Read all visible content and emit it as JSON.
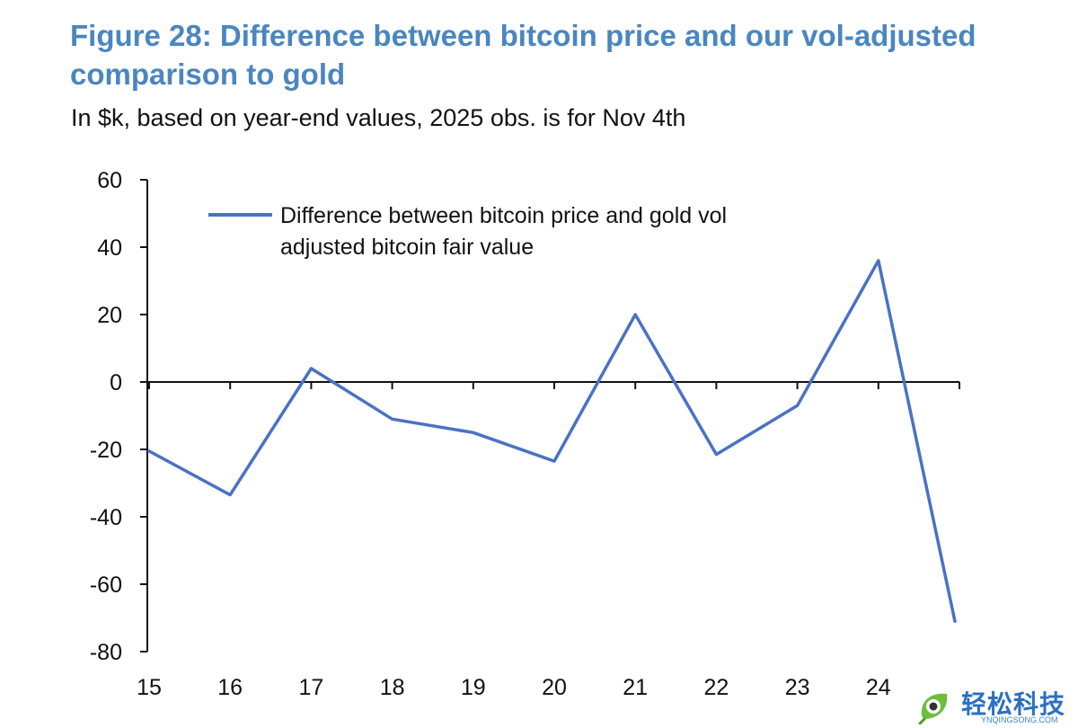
{
  "figure": {
    "title": "Figure 28: Difference between bitcoin price and our vol-adjusted comparison to gold",
    "subtitle": "In $k, based on year-end values, 2025 obs. is for Nov 4th"
  },
  "chart_data": {
    "type": "line",
    "title": "Figure 28: Difference between bitcoin price and our vol-adjusted comparison to gold",
    "subtitle": "In $k, based on year-end values, 2025 obs. is for Nov 4th",
    "xlabel": "",
    "ylabel": "",
    "x": [
      15,
      16,
      17,
      18,
      19,
      20,
      21,
      22,
      23,
      24,
      25
    ],
    "x_tick_labels": [
      "15",
      "16",
      "17",
      "18",
      "19",
      "20",
      "21",
      "22",
      "23",
      "24"
    ],
    "y_ticks": [
      60,
      40,
      20,
      0,
      -20,
      -40,
      -60,
      -80
    ],
    "y_tick_labels": [
      "60",
      "40",
      "20",
      "0",
      "-20",
      "-40",
      "-60",
      "-80"
    ],
    "ylim": [
      -80,
      60
    ],
    "grid": false,
    "legend_position": "top-left",
    "series": [
      {
        "name": "Difference between bitcoin price and gold vol adjusted bitcoin fair value",
        "name_lines": [
          "Difference between bitcoin price and gold vol",
          "adjusted bitcoin fair value"
        ],
        "color": "#4a72c4",
        "values": [
          -20.5,
          -33.5,
          4,
          -11,
          -15,
          -23.5,
          20,
          -21.5,
          -7,
          36,
          -71
        ]
      }
    ]
  },
  "watermark": {
    "text": "轻松科技",
    "subtext": "YNQINGSONG.COM",
    "icon": "leaf-logo-icon"
  }
}
